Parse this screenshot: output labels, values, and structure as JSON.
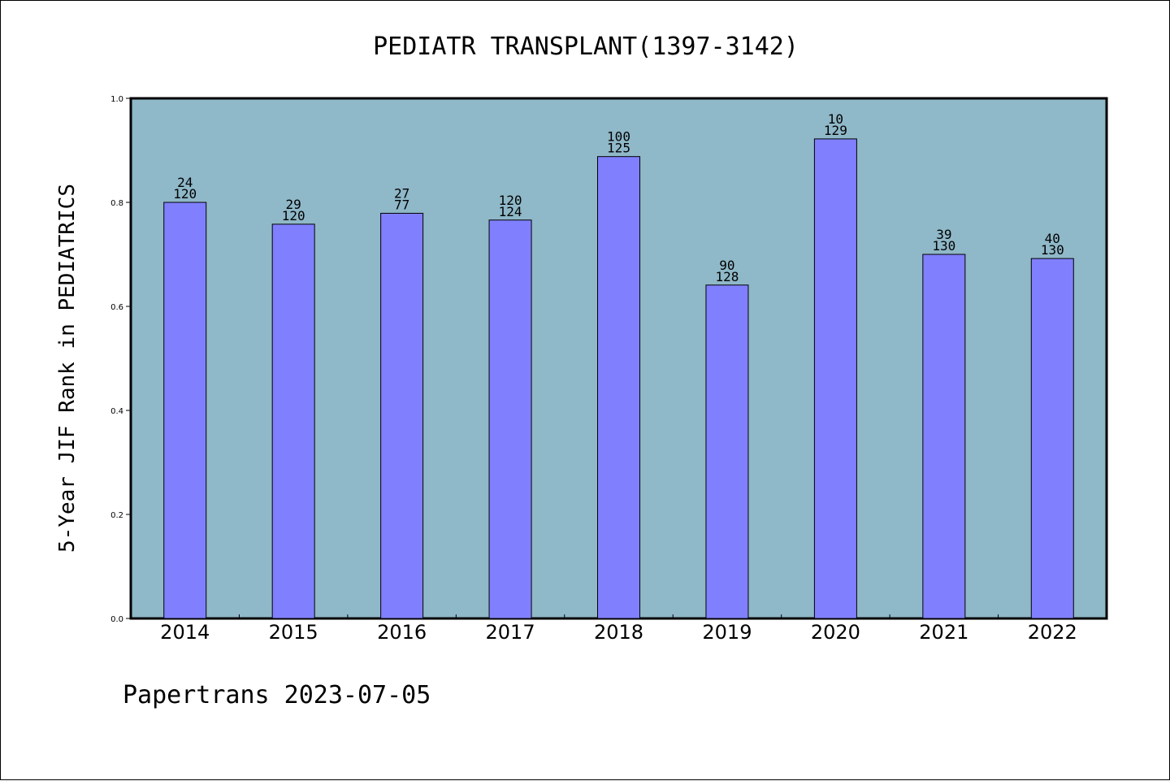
{
  "chart_data": {
    "type": "bar",
    "title": "PEDIATR TRANSPLANT(1397-3142)",
    "ylabel": "5-Year JIF Rank in PEDIATRICS",
    "xlabel": "",
    "ylim": [
      0,
      1.0
    ],
    "yticks": [
      "0.0",
      "0.2",
      "0.4",
      "0.6",
      "0.8",
      "1.0"
    ],
    "categories": [
      "2014",
      "2015",
      "2016",
      "2017",
      "2018",
      "2019",
      "2020",
      "2021",
      "2022"
    ],
    "values": [
      0.8,
      0.758,
      0.779,
      0.766,
      0.888,
      0.641,
      0.922,
      0.7,
      0.692
    ],
    "rank": [
      "24",
      "29",
      "27",
      "120",
      "100",
      "90",
      "10",
      "39",
      "40"
    ],
    "total": [
      "120",
      "120",
      "77",
      "124",
      "125",
      "128",
      "129",
      "130",
      "130"
    ],
    "colors": {
      "plot_bg": "#8fb8c8",
      "bar": "#8080ff",
      "axis": "#000000"
    },
    "grid": false,
    "legend": "none"
  },
  "footer": {
    "text": "Papertrans 2023-07-05"
  }
}
